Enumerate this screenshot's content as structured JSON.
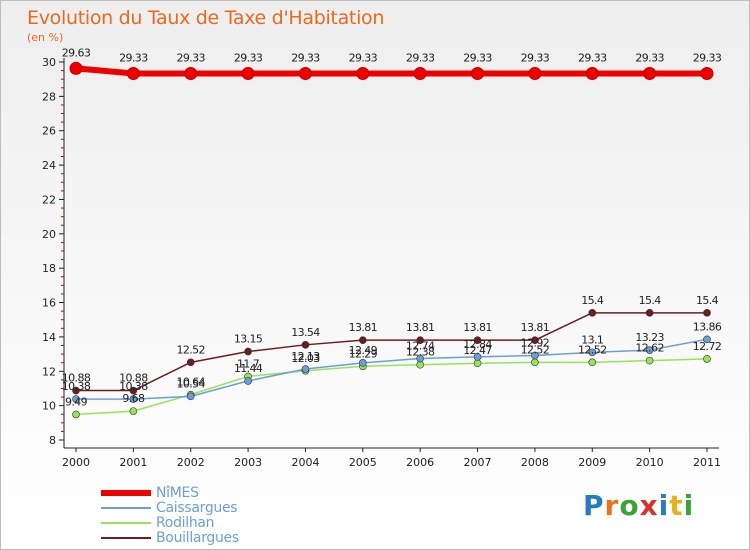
{
  "title": "Evolution du Taux de Taxe d'Habitation",
  "unit_label": "(en %)",
  "logo_text": "Proxiti",
  "chart_data": {
    "type": "line",
    "title": "Evolution du Taux de Taxe d'Habitation",
    "ylabel": "(en %)",
    "xlabel": "",
    "ylim": [
      8,
      30
    ],
    "yticks": [
      8,
      10,
      12,
      14,
      16,
      18,
      20,
      22,
      24,
      26,
      28,
      30
    ],
    "grid": false,
    "legend_position": "bottom-left",
    "categories": [
      "2000",
      "2001",
      "2002",
      "2003",
      "2004",
      "2005",
      "2006",
      "2007",
      "2008",
      "2009",
      "2010",
      "2011"
    ],
    "series": [
      {
        "name": "NîMES",
        "color": "#ee0000",
        "values": [
          29.63,
          29.33,
          29.33,
          29.33,
          29.33,
          29.33,
          29.33,
          29.33,
          29.33,
          29.33,
          29.33,
          29.33
        ],
        "labels": [
          "29.63",
          "29.33",
          "29.33",
          "29.33",
          "29.33",
          "29.33",
          "29.33",
          "29.33",
          "29.33",
          "29.33",
          "29.33",
          "29.33"
        ]
      },
      {
        "name": "Caissargues",
        "color": "#6b9fd8",
        "values": [
          10.38,
          10.38,
          10.54,
          11.44,
          12.13,
          12.49,
          12.74,
          12.84,
          12.92,
          13.1,
          13.23,
          13.86
        ],
        "labels": [
          "10.38",
          "10.38",
          "10.54",
          "11.44",
          "12.13",
          "12.49",
          "12.74",
          "12.84",
          "12.92",
          "13.1",
          "13.23",
          "13.86"
        ]
      },
      {
        "name": "Rodilhan",
        "color": "#99e35a",
        "values": [
          9.49,
          9.68,
          10.64,
          11.7,
          12.03,
          12.29,
          12.38,
          12.47,
          12.52,
          12.52,
          12.62,
          12.72
        ],
        "labels": [
          "9.49",
          "9.68",
          "10.64",
          "11.7",
          "12.03",
          "12.29",
          "12.38",
          "12.47",
          "12.52",
          "12.52",
          "12.62",
          "12.72"
        ]
      },
      {
        "name": "Bouillargues",
        "color": "#6a1e1e",
        "values": [
          10.88,
          10.88,
          12.52,
          13.15,
          13.54,
          13.81,
          13.81,
          13.81,
          13.81,
          15.4,
          15.4,
          15.4
        ],
        "labels": [
          "10.88",
          "10.88",
          "12.52",
          "13.15",
          "13.54",
          "13.81",
          "13.81",
          "13.81",
          "13.81",
          "15.4",
          "15.4",
          "15.4"
        ]
      }
    ]
  }
}
